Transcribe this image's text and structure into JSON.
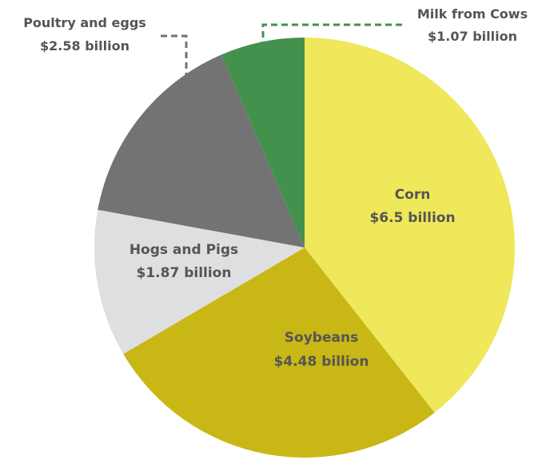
{
  "chart_data": {
    "type": "pie",
    "title": "",
    "unit": "billion",
    "start_angle_deg": 0,
    "direction": "clockwise",
    "legend": "none",
    "slices": [
      {
        "category": "Corn",
        "value": 6.5,
        "value_label": "$6.5 billion",
        "color": "#eee85a",
        "label_color": "#555555",
        "label_position": "inside"
      },
      {
        "category": "Soybeans",
        "value": 4.48,
        "value_label": "$4.48 billion",
        "color": "#c8b715",
        "label_color": "#555555",
        "label_position": "inside"
      },
      {
        "category": "Hogs and Pigs",
        "value": 1.87,
        "value_label": "$1.87 billion",
        "color": "#dfdfe2",
        "label_color": "#555555",
        "label_position": "inside"
      },
      {
        "category": "Poultry and eggs",
        "value": 2.58,
        "value_label": "$2.58 billion",
        "color": "#737373",
        "label_color": "#555555",
        "label_position": "callout"
      },
      {
        "category": "Milk from Cows",
        "value": 1.07,
        "value_label": "$1.07 billion",
        "color": "#43914d",
        "label_color": "#555555",
        "label_position": "callout"
      }
    ]
  }
}
